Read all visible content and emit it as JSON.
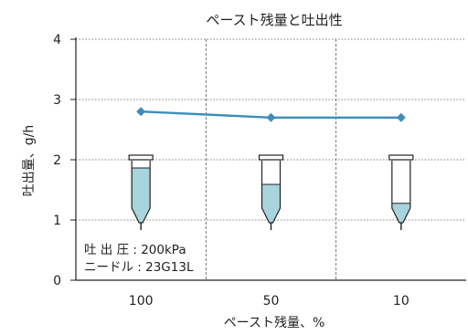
{
  "chart_data": {
    "type": "line",
    "title": "ペースト残量と吐出性",
    "xlabel": "ペースト残量、%",
    "ylabel": "吐出量、g/h",
    "categories": [
      "100",
      "50",
      "10"
    ],
    "series": [
      {
        "values": [
          2.8,
          2.7,
          2.7
        ]
      }
    ],
    "ylim": [
      0,
      4
    ],
    "yticks": [
      "0",
      "1",
      "2",
      "3",
      "4"
    ],
    "syringe_fill_fraction": [
      1.0,
      0.5,
      0.1
    ],
    "annotation_lines": [
      "吐 出 圧 : 200kPa",
      "ニードル : 23G13L"
    ],
    "colors": {
      "line": "#3d8eb9",
      "paste": "#a8d4dd",
      "grid": "#555555"
    },
    "grid": {
      "horizontal": "dotted",
      "category_separators": "dashed"
    }
  }
}
